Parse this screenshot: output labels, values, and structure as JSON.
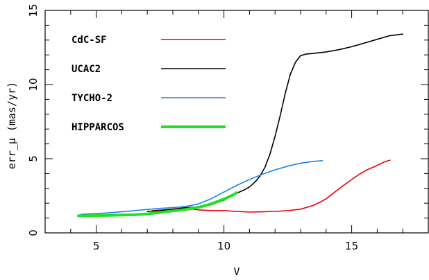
{
  "chart_data": {
    "type": "line",
    "title": "",
    "xlabel": "V",
    "ylabel": "err_μ  (mas/yr)",
    "xlim": [
      3,
      18
    ],
    "ylim": [
      0,
      15
    ],
    "x_ticks": [
      5,
      10,
      15
    ],
    "y_ticks": [
      0,
      5,
      10,
      15
    ],
    "x_tick_labels": [
      "5",
      "10",
      "15"
    ],
    "y_tick_labels": [
      "0",
      "5",
      "10",
      "15"
    ],
    "x_minor_step": 1,
    "y_minor_step": 1,
    "grid": false,
    "legend_position": "top-left",
    "series": [
      {
        "name": "CdC-SF",
        "color": "#e8000b",
        "width": 1.6,
        "x": [
          7.2,
          8.0,
          8.5,
          9.0,
          9.5,
          10.0,
          10.5,
          11.0,
          11.5,
          12.0,
          12.5,
          13.0,
          13.5,
          13.8,
          14.0,
          14.3,
          14.6,
          15.0,
          15.3,
          15.6,
          16.0,
          16.3,
          16.5
        ],
        "y": [
          1.5,
          1.6,
          1.65,
          1.55,
          1.5,
          1.5,
          1.45,
          1.4,
          1.42,
          1.45,
          1.5,
          1.6,
          1.85,
          2.1,
          2.3,
          2.7,
          3.1,
          3.6,
          3.95,
          4.25,
          4.55,
          4.8,
          4.9
        ]
      },
      {
        "name": "UCAC2",
        "color": "#000000",
        "width": 1.6,
        "x": [
          7.0,
          7.5,
          8.0,
          8.5,
          9.0,
          9.5,
          10.0,
          10.3,
          10.6,
          10.8,
          11.0,
          11.2,
          11.4,
          11.6,
          11.8,
          12.0,
          12.2,
          12.4,
          12.6,
          12.8,
          13.0,
          13.2,
          13.5,
          14.0,
          14.5,
          15.0,
          15.5,
          16.0,
          16.5,
          17.0
        ],
        "y": [
          1.45,
          1.5,
          1.6,
          1.7,
          1.75,
          1.9,
          2.2,
          2.5,
          2.75,
          2.9,
          3.1,
          3.4,
          3.8,
          4.4,
          5.3,
          6.5,
          7.9,
          9.4,
          10.7,
          11.5,
          11.95,
          12.05,
          12.1,
          12.2,
          12.35,
          12.55,
          12.8,
          13.05,
          13.3,
          13.4
        ]
      },
      {
        "name": "TYCHO-2",
        "color": "#1a82e6",
        "width": 1.6,
        "x": [
          4.4,
          5.0,
          5.5,
          6.0,
          6.5,
          7.0,
          7.5,
          8.0,
          8.5,
          9.0,
          9.5,
          10.0,
          10.5,
          11.0,
          11.5,
          12.0,
          12.5,
          13.0,
          13.5,
          13.85
        ],
        "y": [
          1.25,
          1.3,
          1.35,
          1.42,
          1.5,
          1.58,
          1.65,
          1.7,
          1.78,
          1.95,
          2.3,
          2.75,
          3.2,
          3.6,
          3.95,
          4.25,
          4.5,
          4.7,
          4.82,
          4.87
        ]
      },
      {
        "name": "HIPPARCOS",
        "color": "#22e022",
        "width": 4,
        "x": [
          4.3,
          4.6,
          5.0,
          5.5,
          6.0,
          6.5,
          7.0,
          7.5,
          8.0,
          8.5,
          9.0,
          9.5,
          9.8,
          10.1,
          10.4,
          10.5
        ],
        "y": [
          1.15,
          1.15,
          1.17,
          1.18,
          1.2,
          1.22,
          1.28,
          1.38,
          1.48,
          1.58,
          1.72,
          1.95,
          2.15,
          2.35,
          2.6,
          2.7
        ]
      }
    ]
  }
}
